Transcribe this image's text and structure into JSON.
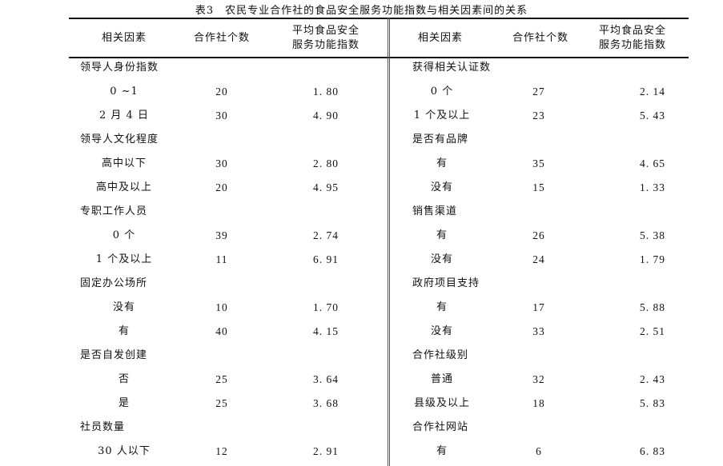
{
  "title": "表3　农民专业合作社的食品安全服务功能指数与相关因素间的关系",
  "headers": {
    "factor": "相关因素",
    "count": "合作社个数",
    "index_line1": "平均食品安全",
    "index_line2": "服务功能指数"
  },
  "left": [
    {
      "type": "group",
      "label": "领导人身份指数"
    },
    {
      "type": "item",
      "label": "0 ~1",
      "count": "20",
      "index": "1. 80"
    },
    {
      "type": "item",
      "label": "2 月 4 日",
      "count": "30",
      "index": "4. 90"
    },
    {
      "type": "group",
      "label": "领导人文化程度"
    },
    {
      "type": "item",
      "label": "高中以下",
      "count": "30",
      "index": "2. 80"
    },
    {
      "type": "item",
      "label": "高中及以上",
      "count": "20",
      "index": "4. 95"
    },
    {
      "type": "group",
      "label": "专职工作人员"
    },
    {
      "type": "item",
      "label": "0 个",
      "count": "39",
      "index": "2. 74"
    },
    {
      "type": "item",
      "label": "1 个及以上",
      "count": "11",
      "index": "6. 91"
    },
    {
      "type": "group",
      "label": "固定办公场所"
    },
    {
      "type": "item",
      "label": "没有",
      "count": "10",
      "index": "1. 70"
    },
    {
      "type": "item",
      "label": "有",
      "count": "40",
      "index": "4. 15"
    },
    {
      "type": "group",
      "label": "是否自发创建"
    },
    {
      "type": "item",
      "label": "否",
      "count": "25",
      "index": "3. 64"
    },
    {
      "type": "item",
      "label": "是",
      "count": "25",
      "index": "3. 68"
    },
    {
      "type": "group",
      "label": "社员数量"
    },
    {
      "type": "item",
      "label": "30 人以下",
      "count": "12",
      "index": "2. 91"
    }
  ],
  "right": [
    {
      "type": "group",
      "label": "获得相关认证数"
    },
    {
      "type": "item",
      "label": "0 个",
      "count": "27",
      "index": "2. 14"
    },
    {
      "type": "item",
      "label": "1 个及以上",
      "count": "23",
      "index": "5. 43"
    },
    {
      "type": "group",
      "label": "是否有品牌"
    },
    {
      "type": "item",
      "label": "有",
      "count": "35",
      "index": "4. 65"
    },
    {
      "type": "item",
      "label": "没有",
      "count": "15",
      "index": "1. 33"
    },
    {
      "type": "group",
      "label": "销售渠道"
    },
    {
      "type": "item",
      "label": "有",
      "count": "26",
      "index": "5. 38"
    },
    {
      "type": "item",
      "label": "没有",
      "count": "24",
      "index": "1. 79"
    },
    {
      "type": "group",
      "label": "政府项目支持"
    },
    {
      "type": "item",
      "label": "有",
      "count": "17",
      "index": "5. 88"
    },
    {
      "type": "item",
      "label": "没有",
      "count": "33",
      "index": "2. 51"
    },
    {
      "type": "group",
      "label": "合作社级别"
    },
    {
      "type": "item",
      "label": "普通",
      "count": "32",
      "index": "2. 43"
    },
    {
      "type": "item",
      "label": "县级及以上",
      "count": "18",
      "index": "5. 83"
    },
    {
      "type": "group",
      "label": "合作社网站"
    },
    {
      "type": "item",
      "label": "有",
      "count": "6",
      "index": "6. 83"
    }
  ]
}
